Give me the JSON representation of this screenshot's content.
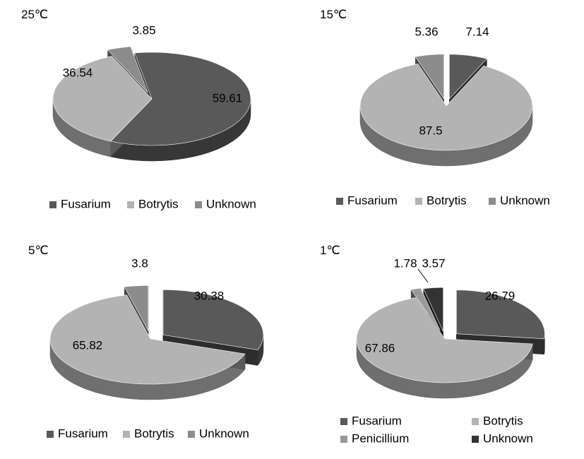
{
  "colors": {
    "Fusarium": "#595959",
    "Botrytis": "#b3b3b3",
    "Unknown": "#8c8c8c",
    "Penicillium": "#999999",
    "Unknown_dark": "#333333"
  },
  "chart_data": [
    {
      "type": "pie",
      "style": "exploded-3d",
      "title": "25℃",
      "legend_position": "bottom",
      "series": [
        {
          "name": "Fusarium",
          "value": 59.61
        },
        {
          "name": "Botrytis",
          "value": 36.54
        },
        {
          "name": "Unknown",
          "value": 3.85
        }
      ]
    },
    {
      "type": "pie",
      "style": "exploded-3d",
      "title": "15℃",
      "legend_position": "bottom",
      "series": [
        {
          "name": "Fusarium",
          "value": 7.14
        },
        {
          "name": "Botrytis",
          "value": 87.5
        },
        {
          "name": "Unknown",
          "value": 5.36
        }
      ]
    },
    {
      "type": "pie",
      "style": "exploded-3d",
      "title": "5℃",
      "legend_position": "bottom",
      "series": [
        {
          "name": "Fusarium",
          "value": 30.38
        },
        {
          "name": "Botrytis",
          "value": 65.82
        },
        {
          "name": "Unknown",
          "value": 3.8
        }
      ]
    },
    {
      "type": "pie",
      "style": "exploded-3d",
      "title": "1℃",
      "legend_position": "bottom",
      "series": [
        {
          "name": "Fusarium",
          "value": 26.79
        },
        {
          "name": "Botrytis",
          "value": 67.86
        },
        {
          "name": "Penicillium",
          "value": 1.78
        },
        {
          "name": "Unknown",
          "value": 3.57
        }
      ]
    }
  ]
}
